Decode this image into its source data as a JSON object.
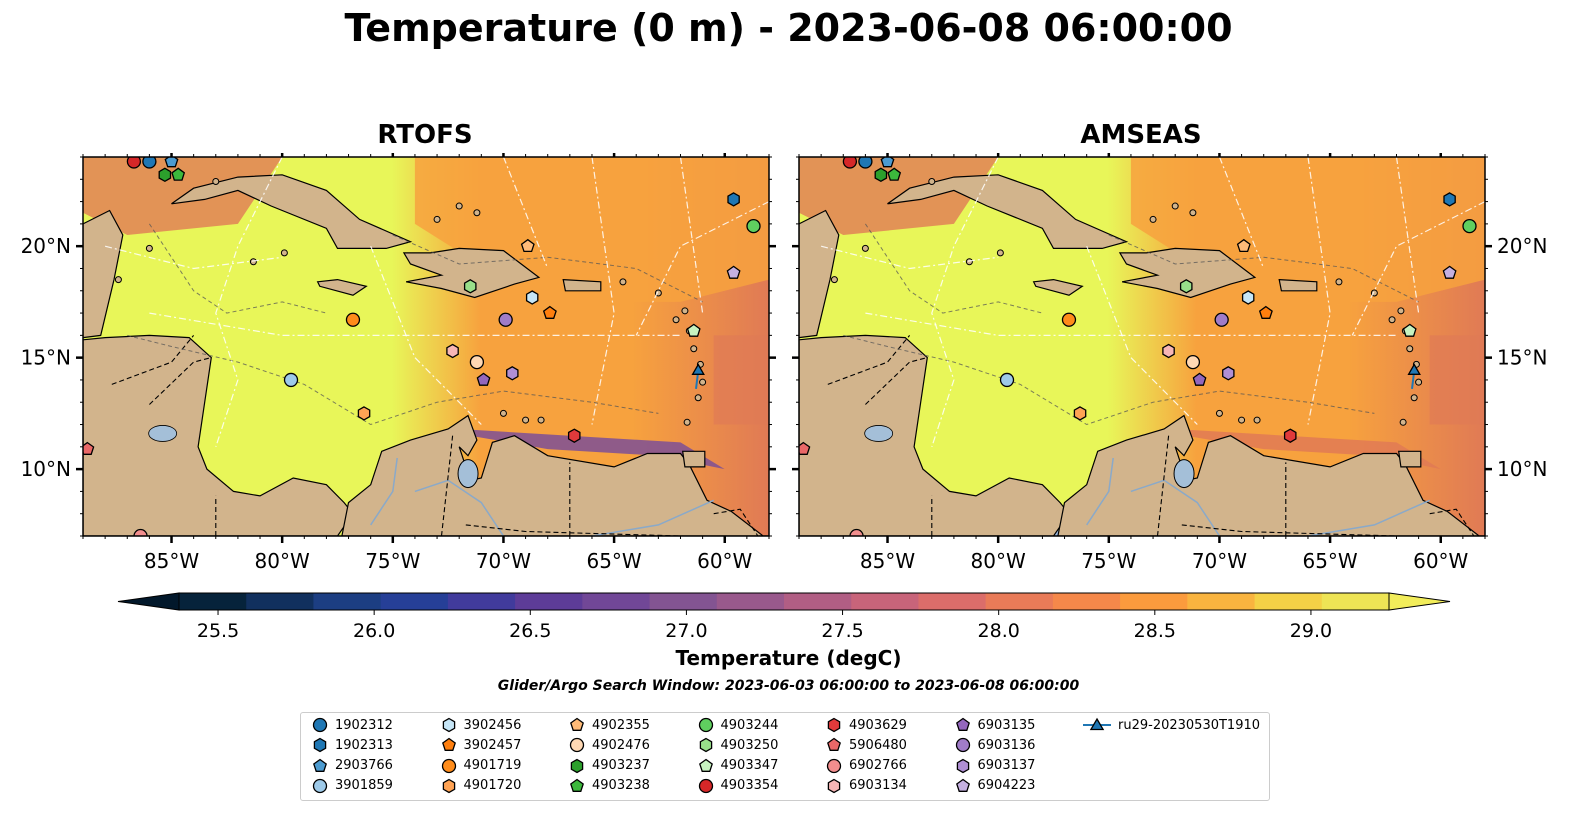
{
  "title": "Temperature (0 m) - 2023-06-08 06:00:00",
  "panels": [
    {
      "title": "RTOFS",
      "land_ocean_left": false
    },
    {
      "title": "AMSEAS",
      "land_ocean_left": true
    }
  ],
  "colors": {
    "land": "#d2b48c",
    "water_land": "#99b8e0",
    "lake": "#a4bfd8",
    "warm_low": "#e8f659",
    "warm_mid": "#f7a23e",
    "warm_high": "#e07a55",
    "cool": "#7d4f96"
  },
  "chart_data": {
    "type": "heatmap",
    "title": "Temperature (0 m) - 2023-06-08 06:00:00",
    "x_axis": {
      "range": [
        -89,
        -58
      ],
      "ticks": [
        -85,
        -80,
        -75,
        -70,
        -65,
        -60
      ],
      "tick_labels": [
        "85°W",
        "80°W",
        "75°W",
        "70°W",
        "65°W",
        "60°W"
      ]
    },
    "y_axis": {
      "range": [
        7,
        24
      ],
      "ticks": [
        10,
        15,
        20
      ],
      "tick_labels": [
        "10°N",
        "15°N",
        "20°N"
      ]
    },
    "colorbar": {
      "label": "Temperature (degC)",
      "min": 25.375,
      "max": 29.25,
      "step": 0.25,
      "extend": "both",
      "ticks": [
        25.5,
        26.0,
        26.5,
        27.0,
        27.5,
        28.0,
        28.5,
        29.0
      ],
      "tick_labels": [
        "25.5",
        "26.0",
        "26.5",
        "27.0",
        "27.5",
        "28.0",
        "28.5",
        "29.0"
      ],
      "colors": [
        "#06233b",
        "#11305e",
        "#1c3e82",
        "#263f97",
        "#413b9c",
        "#5d3c98",
        "#714797",
        "#835492",
        "#99598c",
        "#b15e84",
        "#c8647a",
        "#db6d6a",
        "#e97b58",
        "#f5884a",
        "#fb9b3d",
        "#f9b43f",
        "#f4d146",
        "#eee455"
      ]
    },
    "subtitle": "Glider/Argo Search Window: 2023-06-03 06:00:00 to 2023-06-08 06:00:00",
    "legend_placement": "bottom-center",
    "series": [
      {
        "name": "1902312",
        "marker": "circle",
        "color": "#1f77b4",
        "lon": -86.0,
        "lat": 23.8
      },
      {
        "name": "1902313",
        "marker": "hexagon",
        "color": "#1f77b4",
        "lon": -59.6,
        "lat": 22.1
      },
      {
        "name": "2903766",
        "marker": "pentagon",
        "color": "#4c9bd0",
        "lon": -85.0,
        "lat": 23.8
      },
      {
        "name": "3901859",
        "marker": "circle",
        "color": "#9ecae9",
        "lon": -79.6,
        "lat": 14.0
      },
      {
        "name": "3902456",
        "marker": "hexagon",
        "color": "#c6e6f7",
        "lon": -68.7,
        "lat": 17.7
      },
      {
        "name": "3902457",
        "marker": "pentagon",
        "color": "#ff7f0e",
        "lon": -67.9,
        "lat": 17.0
      },
      {
        "name": "4901719",
        "marker": "circle",
        "color": "#ff8c1a",
        "lon": -76.8,
        "lat": 16.7
      },
      {
        "name": "4901720",
        "marker": "hexagon",
        "color": "#ffa354",
        "lon": -76.3,
        "lat": 12.5
      },
      {
        "name": "4902355",
        "marker": "pentagon",
        "color": "#ffbb78",
        "lon": -68.9,
        "lat": 20.0
      },
      {
        "name": "4902476",
        "marker": "circle",
        "color": "#ffd8b3",
        "lon": -71.2,
        "lat": 14.8
      },
      {
        "name": "4903237",
        "marker": "hexagon",
        "color": "#2ca02c",
        "lon": -85.3,
        "lat": 23.2
      },
      {
        "name": "4903238",
        "marker": "pentagon",
        "color": "#3cb83c",
        "lon": -84.7,
        "lat": 23.2
      },
      {
        "name": "4903244",
        "marker": "circle",
        "color": "#5fcf5f",
        "lon": -58.7,
        "lat": 20.9
      },
      {
        "name": "4903250",
        "marker": "hexagon",
        "color": "#98df8a",
        "lon": -71.5,
        "lat": 18.2
      },
      {
        "name": "4903347",
        "marker": "pentagon",
        "color": "#c7f2c0",
        "lon": -61.4,
        "lat": 16.2
      },
      {
        "name": "4903354",
        "marker": "circle",
        "color": "#d62728",
        "lon": -86.7,
        "lat": 23.8
      },
      {
        "name": "4903629",
        "marker": "hexagon",
        "color": "#e03a3b",
        "lon": -66.8,
        "lat": 11.5
      },
      {
        "name": "5906480",
        "marker": "pentagon",
        "color": "#ea6868",
        "lon": -88.8,
        "lat": 10.9
      },
      {
        "name": "6902766",
        "marker": "circle",
        "color": "#f28e8e",
        "lon": -86.4,
        "lat": 7.0
      },
      {
        "name": "6903134",
        "marker": "hexagon",
        "color": "#f7b6b6",
        "lon": -72.3,
        "lat": 15.3
      },
      {
        "name": "6903135",
        "marker": "pentagon",
        "color": "#9467bd",
        "lon": -70.9,
        "lat": 14.0
      },
      {
        "name": "6903136",
        "marker": "circle",
        "color": "#a07cc8",
        "lon": -69.9,
        "lat": 16.7
      },
      {
        "name": "6903137",
        "marker": "hexagon",
        "color": "#b08fd4",
        "lon": -69.6,
        "lat": 14.3
      },
      {
        "name": "6904223",
        "marker": "pentagon",
        "color": "#c5b0e0",
        "lon": -59.6,
        "lat": 18.8
      },
      {
        "name": "ru29-20230530T1910",
        "marker": "triangle-line",
        "color": "#1f77b4",
        "lon": -61.2,
        "lat": 14.4
      }
    ]
  }
}
